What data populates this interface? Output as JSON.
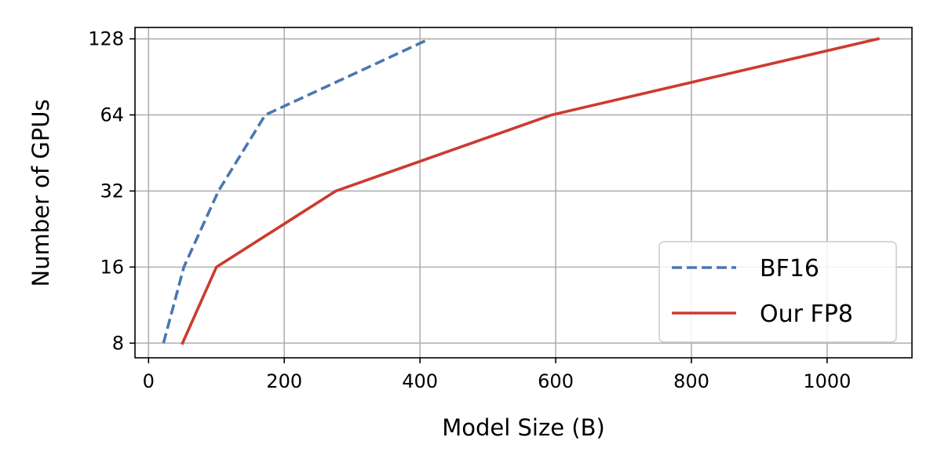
{
  "chart_data": {
    "type": "line",
    "xlabel": "Model Size (B)",
    "ylabel": "Number of GPUs",
    "xlim": [
      -20,
      1125
    ],
    "ylim": [
      7,
      142
    ],
    "yscale": "log2",
    "x_ticks": [
      0,
      200,
      400,
      600,
      800,
      1000
    ],
    "y_ticks": [
      8,
      16,
      32,
      64,
      128
    ],
    "grid": true,
    "legend_position": "lower-right",
    "series": [
      {
        "name": "BF16",
        "color": "#4a78b0",
        "linestyle": "dashed",
        "x": [
          22,
          52,
          103,
          172,
          414
        ],
        "y": [
          8,
          16,
          32,
          64,
          128
        ]
      },
      {
        "name": "Our FP8",
        "color": "#cc3b2f",
        "linestyle": "solid",
        "x": [
          50,
          100,
          276,
          594,
          1075
        ],
        "y": [
          8,
          16,
          32,
          64,
          128
        ]
      }
    ]
  }
}
